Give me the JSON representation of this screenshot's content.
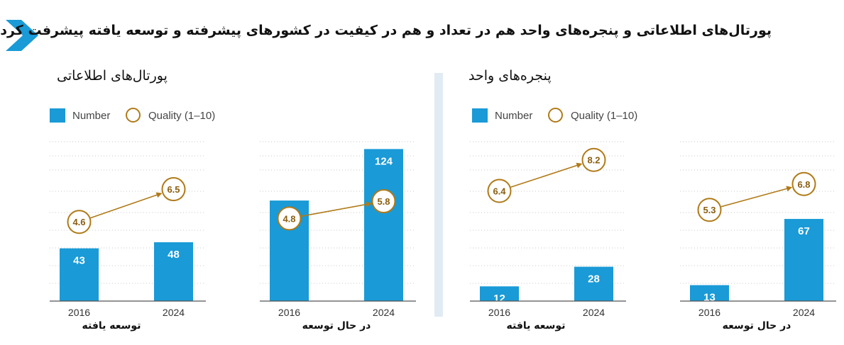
{
  "header": {
    "title": "پورتال‌های اطلاعاتی و پنجره‌های واحد هم در تعداد و هم در کیفیت در کشورهای پیشرفته و توسعه یافته پیشرفت کرده‌اند"
  },
  "sections": [
    {
      "title": "پورتال‌های اطلاعاتی"
    },
    {
      "title": "پنجره‌های واحد"
    }
  ],
  "legend": {
    "number_label": "Number",
    "quality_label": "Quality (1–10)"
  },
  "group_labels": {
    "developed": "توسعه یافته",
    "developing": "در حال توسعه"
  },
  "colors": {
    "bar": "#1a9ad6",
    "quality": "#b07a18",
    "grid": "#c8c8c8"
  },
  "chart_data": [
    {
      "type": "bar",
      "title": "پورتال‌های اطلاعاتی",
      "group": "توسعه یافته",
      "categories": [
        "2016",
        "2024"
      ],
      "values": [
        43,
        48
      ],
      "quality": [
        4.6,
        6.5
      ],
      "ylim": [
        0,
        130
      ]
    },
    {
      "type": "bar",
      "title": "پورتال‌های اطلاعاتی",
      "group": "در حال توسعه",
      "categories": [
        "2016",
        "2024"
      ],
      "values": [
        82,
        124
      ],
      "quality": [
        4.8,
        5.8
      ],
      "ylim": [
        0,
        130
      ]
    },
    {
      "type": "bar",
      "title": "پنجره‌های واحد",
      "group": "توسعه یافته",
      "categories": [
        "2016",
        "2024"
      ],
      "values": [
        12,
        28
      ],
      "quality": [
        6.4,
        8.2
      ],
      "ylim": [
        0,
        130
      ]
    },
    {
      "type": "bar",
      "title": "پنجره‌های واحد",
      "group": "در حال توسعه",
      "categories": [
        "2016",
        "2024"
      ],
      "values": [
        13,
        67
      ],
      "quality": [
        5.3,
        6.8
      ],
      "ylim": [
        0,
        130
      ]
    }
  ]
}
